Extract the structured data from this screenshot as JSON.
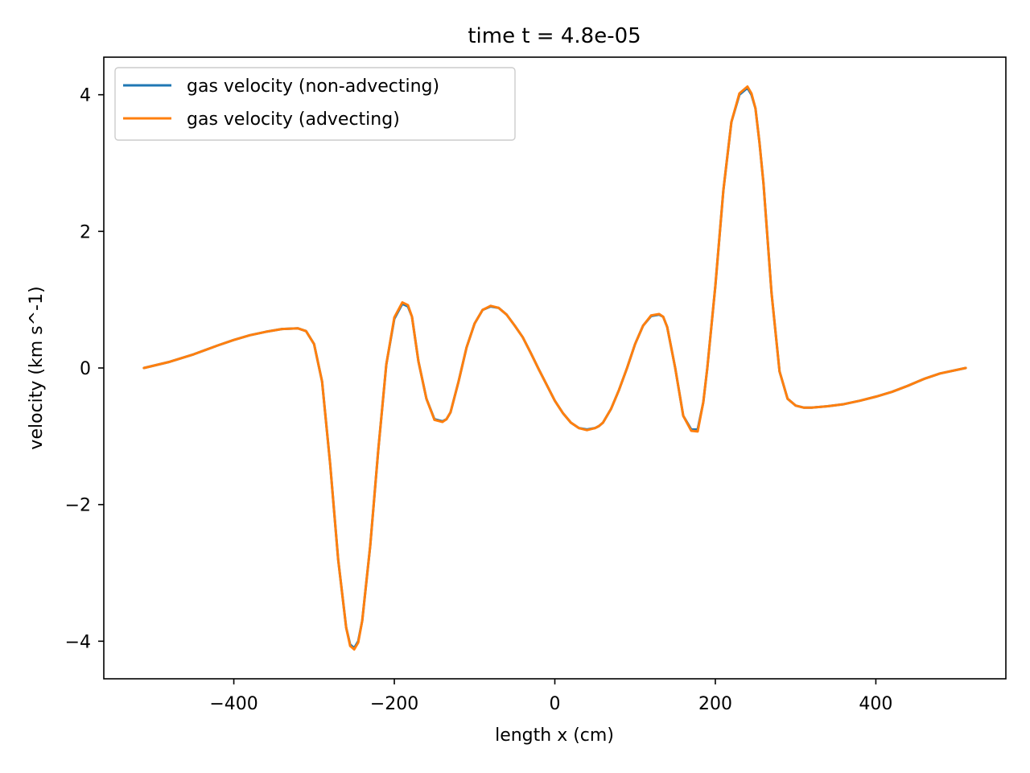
{
  "chart_data": {
    "type": "line",
    "title": "time t = 4.8e-05",
    "xlabel": "length x (cm)",
    "ylabel": "velocity (km s^-1)",
    "xlim": [
      -562,
      562
    ],
    "ylim": [
      -4.55,
      4.55
    ],
    "xticks": [
      -400,
      -200,
      0,
      200,
      400
    ],
    "xtick_labels": [
      "−400",
      "−200",
      "0",
      "200",
      "400"
    ],
    "yticks": [
      -4,
      -2,
      0,
      2,
      4
    ],
    "ytick_labels": [
      "−4",
      "−2",
      "0",
      "2",
      "4"
    ],
    "grid": false,
    "legend_position": "top-left",
    "x": [
      -512,
      -480,
      -450,
      -420,
      -400,
      -380,
      -360,
      -340,
      -320,
      -310,
      -300,
      -290,
      -280,
      -270,
      -260,
      -255,
      -250,
      -245,
      -240,
      -230,
      -220,
      -210,
      -200,
      -190,
      -183,
      -178,
      -170,
      -160,
      -150,
      -140,
      -135,
      -130,
      -120,
      -110,
      -100,
      -90,
      -80,
      -70,
      -60,
      -55,
      -50,
      -40,
      -30,
      -20,
      -10,
      0,
      10,
      20,
      30,
      40,
      50,
      55,
      60,
      70,
      80,
      90,
      100,
      110,
      120,
      130,
      135,
      140,
      150,
      160,
      170,
      178,
      185,
      190,
      200,
      210,
      220,
      230,
      240,
      245,
      250,
      255,
      260,
      270,
      280,
      290,
      300,
      310,
      320,
      340,
      360,
      380,
      400,
      420,
      440,
      460,
      480,
      512
    ],
    "series": [
      {
        "name": "gas velocity (non-advecting)",
        "color": "#1f77b4",
        "values": [
          0.0,
          0.09,
          0.2,
          0.33,
          0.41,
          0.48,
          0.53,
          0.57,
          0.58,
          0.54,
          0.35,
          -0.2,
          -1.4,
          -2.8,
          -3.8,
          -4.05,
          -4.1,
          -4.0,
          -3.7,
          -2.6,
          -1.2,
          0.05,
          0.72,
          0.94,
          0.9,
          0.75,
          0.1,
          -0.45,
          -0.75,
          -0.78,
          -0.75,
          -0.65,
          -0.2,
          0.3,
          0.65,
          0.85,
          0.9,
          0.88,
          0.78,
          0.7,
          0.62,
          0.45,
          0.22,
          -0.02,
          -0.25,
          -0.48,
          -0.66,
          -0.8,
          -0.88,
          -0.9,
          -0.88,
          -0.85,
          -0.8,
          -0.6,
          -0.32,
          0.0,
          0.35,
          0.62,
          0.76,
          0.78,
          0.75,
          0.6,
          0.0,
          -0.7,
          -0.9,
          -0.9,
          -0.5,
          0.0,
          1.2,
          2.6,
          3.6,
          4.0,
          4.1,
          4.0,
          3.8,
          3.3,
          2.7,
          1.1,
          -0.05,
          -0.45,
          -0.55,
          -0.58,
          -0.58,
          -0.56,
          -0.53,
          -0.48,
          -0.42,
          -0.35,
          -0.26,
          -0.16,
          -0.08,
          0.0
        ]
      },
      {
        "name": "gas velocity (advecting)",
        "color": "#ff7f0e",
        "values": [
          0.0,
          0.09,
          0.2,
          0.33,
          0.41,
          0.48,
          0.53,
          0.57,
          0.58,
          0.54,
          0.35,
          -0.2,
          -1.4,
          -2.8,
          -3.8,
          -4.07,
          -4.12,
          -4.02,
          -3.7,
          -2.6,
          -1.2,
          0.05,
          0.74,
          0.96,
          0.92,
          0.75,
          0.1,
          -0.45,
          -0.76,
          -0.79,
          -0.75,
          -0.65,
          -0.2,
          0.3,
          0.65,
          0.85,
          0.91,
          0.88,
          0.78,
          0.7,
          0.62,
          0.45,
          0.22,
          -0.02,
          -0.25,
          -0.48,
          -0.66,
          -0.8,
          -0.88,
          -0.91,
          -0.88,
          -0.85,
          -0.8,
          -0.6,
          -0.32,
          0.0,
          0.35,
          0.62,
          0.77,
          0.79,
          0.75,
          0.6,
          0.0,
          -0.7,
          -0.92,
          -0.93,
          -0.5,
          0.0,
          1.2,
          2.6,
          3.6,
          4.02,
          4.12,
          4.02,
          3.8,
          3.3,
          2.7,
          1.1,
          -0.05,
          -0.45,
          -0.55,
          -0.58,
          -0.58,
          -0.56,
          -0.53,
          -0.48,
          -0.42,
          -0.35,
          -0.26,
          -0.16,
          -0.08,
          0.0
        ]
      }
    ]
  }
}
